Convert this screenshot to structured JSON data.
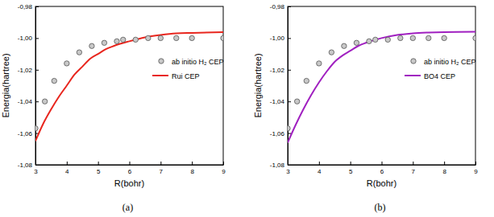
{
  "chart_data": [
    {
      "type": "line",
      "title": "(a)",
      "x_label": "R(bohr)",
      "y_label": "Energia(hartree)",
      "xlim": [
        3,
        9
      ],
      "xticks": [
        3,
        4,
        5,
        6,
        7,
        8,
        9
      ],
      "ylim": [
        -1.08,
        -0.98
      ],
      "yticks": [
        {
          "value": -1.08,
          "label": "-1,08"
        },
        {
          "value": -1.06,
          "label": "-1,06"
        },
        {
          "value": -1.04,
          "label": "-1,04"
        },
        {
          "value": -1.02,
          "label": "-1,02"
        },
        {
          "value": -1.0,
          "label": "-1,00"
        },
        {
          "value": -0.98,
          "label": "-0,98"
        }
      ],
      "legend": "upper right",
      "series": [
        {
          "name": "ab initio H₂ CEP",
          "type": "scatter",
          "marker": "circle",
          "color": "#c8c8c8",
          "x": [
            3.0,
            3.3,
            3.6,
            4.0,
            4.4,
            4.8,
            5.2,
            5.6,
            5.8,
            6.2,
            6.6,
            7.0,
            7.5,
            8.0,
            9.0
          ],
          "values": [
            -1.057,
            -1.04,
            -1.027,
            -1.016,
            -1.009,
            -1.005,
            -1.003,
            -1.002,
            -1.001,
            -1.001,
            -1.0,
            -1.0,
            -1.0,
            -1.0,
            -1.0
          ]
        },
        {
          "name": "Rui CEP",
          "type": "line",
          "color": "#e8261e",
          "x": [
            3.0,
            3.25,
            3.5,
            3.75,
            4.0,
            4.25,
            4.5,
            4.75,
            5.0,
            5.25,
            5.5,
            6.0,
            6.5,
            7.0,
            7.5,
            8.0,
            9.0
          ],
          "values": [
            -1.065,
            -1.054,
            -1.045,
            -1.037,
            -1.03,
            -1.023,
            -1.018,
            -1.013,
            -1.01,
            -1.007,
            -1.005,
            -1.002,
            -0.9995,
            -0.998,
            -0.997,
            -0.9967,
            -0.9963
          ]
        }
      ]
    },
    {
      "type": "line",
      "title": "(b)",
      "x_label": "R(bohr)",
      "y_label": "Energia(hartree)",
      "xlim": [
        3,
        9
      ],
      "xticks": [
        3,
        4,
        5,
        6,
        7,
        8,
        9
      ],
      "ylim": [
        -1.08,
        -0.98
      ],
      "yticks": [
        {
          "value": -1.08,
          "label": "-1,08"
        },
        {
          "value": -1.06,
          "label": "-1,06"
        },
        {
          "value": -1.04,
          "label": "-1,04"
        },
        {
          "value": -1.02,
          "label": "-1,02"
        },
        {
          "value": -1.0,
          "label": "-1,00"
        },
        {
          "value": -0.98,
          "label": "-0,98"
        }
      ],
      "legend": "upper right",
      "series": [
        {
          "name": "ab initio H₂ CEP",
          "type": "scatter",
          "marker": "circle",
          "color": "#c8c8c8",
          "x": [
            3.0,
            3.3,
            3.6,
            4.0,
            4.4,
            4.8,
            5.2,
            5.6,
            5.8,
            6.2,
            6.6,
            7.0,
            7.5,
            8.0,
            9.0
          ],
          "values": [
            -1.057,
            -1.04,
            -1.027,
            -1.016,
            -1.009,
            -1.005,
            -1.003,
            -1.002,
            -1.001,
            -1.001,
            -1.0,
            -1.0,
            -1.0,
            -1.0,
            -1.0
          ]
        },
        {
          "name": "BO4 CEP",
          "type": "line",
          "color": "#a020c0",
          "x": [
            3.0,
            3.25,
            3.5,
            3.75,
            4.0,
            4.25,
            4.5,
            4.75,
            5.0,
            5.25,
            5.5,
            6.0,
            6.5,
            7.0,
            7.5,
            8.0,
            9.0
          ],
          "values": [
            -1.066,
            -1.055,
            -1.045,
            -1.036,
            -1.028,
            -1.021,
            -1.015,
            -1.011,
            -1.008,
            -1.005,
            -1.003,
            -1.0,
            -0.998,
            -0.997,
            -0.9965,
            -0.9962,
            -0.996
          ]
        }
      ]
    }
  ]
}
